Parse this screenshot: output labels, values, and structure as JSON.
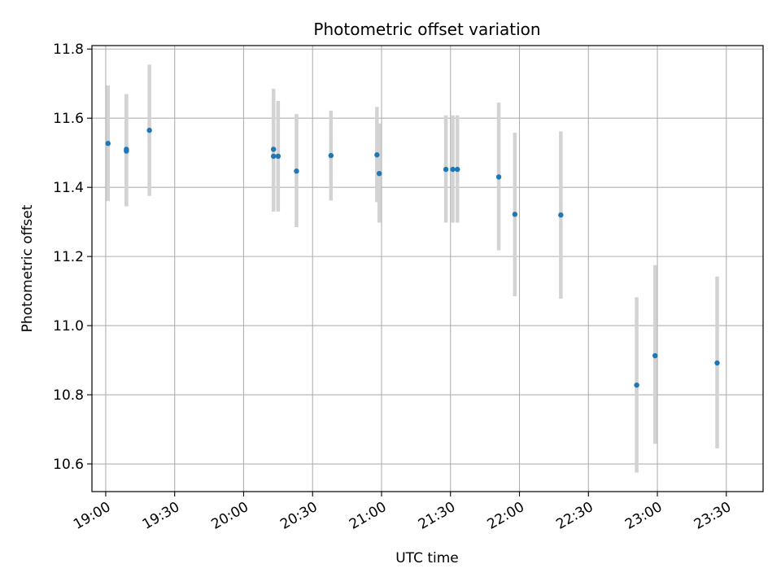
{
  "chart_data": {
    "type": "scatter",
    "title": "Photometric offset variation",
    "xlabel": "UTC time",
    "ylabel": "Photometric offset",
    "xlim": [
      "18:54",
      "23:46"
    ],
    "ylim": [
      10.52,
      11.81
    ],
    "xticks": [
      "19:00",
      "19:30",
      "20:00",
      "20:30",
      "21:00",
      "21:30",
      "22:00",
      "22:30",
      "23:00",
      "23:30"
    ],
    "yticks": [
      "10.6",
      "10.8",
      "11.0",
      "11.2",
      "11.4",
      "11.6",
      "11.8"
    ],
    "grid": true,
    "colors": {
      "point": "#1f77b4",
      "errorbar": "#d3d3d3",
      "grid": "#b0b0b0"
    },
    "points": [
      {
        "x": "19:01",
        "y": 11.527,
        "ylow": 11.36,
        "yhigh": 11.695
      },
      {
        "x": "19:09",
        "y": 11.51,
        "ylow": 11.345,
        "yhigh": 11.67
      },
      {
        "x": "19:09",
        "y": 11.505,
        "ylow": 11.345,
        "yhigh": 11.665
      },
      {
        "x": "19:19",
        "y": 11.565,
        "ylow": 11.375,
        "yhigh": 11.755
      },
      {
        "x": "20:13",
        "y": 11.51,
        "ylow": 11.34,
        "yhigh": 11.685
      },
      {
        "x": "20:13",
        "y": 11.49,
        "ylow": 11.33,
        "yhigh": 11.65
      },
      {
        "x": "20:15",
        "y": 11.49,
        "ylow": 11.33,
        "yhigh": 11.65
      },
      {
        "x": "20:23",
        "y": 11.447,
        "ylow": 11.285,
        "yhigh": 11.612
      },
      {
        "x": "20:38",
        "y": 11.492,
        "ylow": 11.362,
        "yhigh": 11.622
      },
      {
        "x": "20:58",
        "y": 11.494,
        "ylow": 11.357,
        "yhigh": 11.633
      },
      {
        "x": "20:59",
        "y": 11.44,
        "ylow": 11.298,
        "yhigh": 11.585
      },
      {
        "x": "21:28",
        "y": 11.452,
        "ylow": 11.298,
        "yhigh": 11.608
      },
      {
        "x": "21:31",
        "y": 11.452,
        "ylow": 11.298,
        "yhigh": 11.608
      },
      {
        "x": "21:33",
        "y": 11.452,
        "ylow": 11.298,
        "yhigh": 11.608
      },
      {
        "x": "21:51",
        "y": 11.43,
        "ylow": 11.218,
        "yhigh": 11.645
      },
      {
        "x": "21:58",
        "y": 11.322,
        "ylow": 11.085,
        "yhigh": 11.558
      },
      {
        "x": "22:18",
        "y": 11.32,
        "ylow": 11.078,
        "yhigh": 11.562
      },
      {
        "x": "22:51",
        "y": 10.828,
        "ylow": 10.575,
        "yhigh": 11.082
      },
      {
        "x": "22:59",
        "y": 10.913,
        "ylow": 10.658,
        "yhigh": 11.175
      },
      {
        "x": "23:26",
        "y": 10.892,
        "ylow": 10.645,
        "yhigh": 11.142
      }
    ]
  }
}
